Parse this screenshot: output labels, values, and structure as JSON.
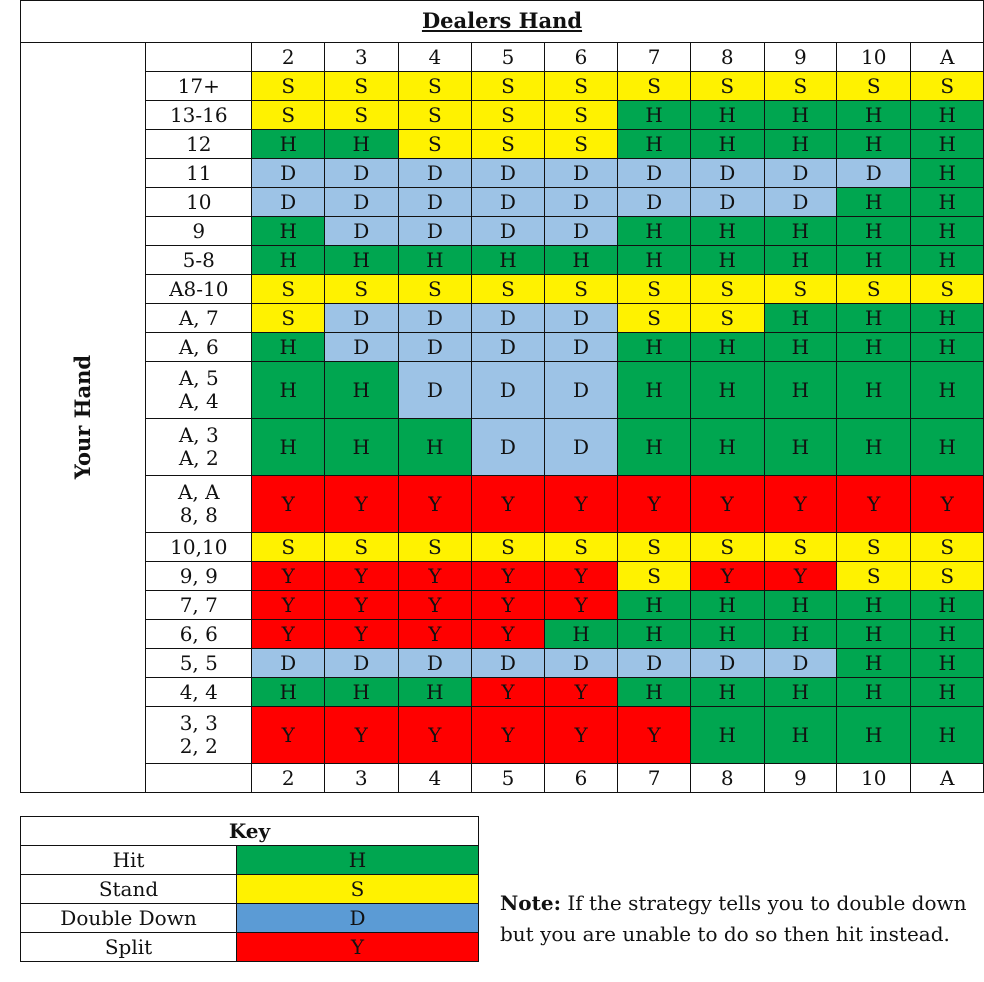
{
  "title": "Dealers Hand",
  "side_label": "Your Hand",
  "dealer_cards": [
    "2",
    "3",
    "4",
    "5",
    "6",
    "7",
    "8",
    "9",
    "10",
    "A"
  ],
  "rows": [
    {
      "labels": [
        "17+"
      ],
      "tall": false,
      "cells": [
        "S",
        "S",
        "S",
        "S",
        "S",
        "S",
        "S",
        "S",
        "S",
        "S"
      ]
    },
    {
      "labels": [
        "13-16"
      ],
      "tall": false,
      "cells": [
        "S",
        "S",
        "S",
        "S",
        "S",
        "H",
        "H",
        "H",
        "H",
        "H"
      ]
    },
    {
      "labels": [
        "12"
      ],
      "tall": false,
      "cells": [
        "H",
        "H",
        "S",
        "S",
        "S",
        "H",
        "H",
        "H",
        "H",
        "H"
      ]
    },
    {
      "labels": [
        "11"
      ],
      "tall": false,
      "cells": [
        "D",
        "D",
        "D",
        "D",
        "D",
        "D",
        "D",
        "D",
        "D",
        "H"
      ]
    },
    {
      "labels": [
        "10"
      ],
      "tall": false,
      "cells": [
        "D",
        "D",
        "D",
        "D",
        "D",
        "D",
        "D",
        "D",
        "H",
        "H"
      ]
    },
    {
      "labels": [
        "9"
      ],
      "tall": false,
      "cells": [
        "H",
        "D",
        "D",
        "D",
        "D",
        "H",
        "H",
        "H",
        "H",
        "H"
      ]
    },
    {
      "labels": [
        "5-8"
      ],
      "tall": false,
      "cells": [
        "H",
        "H",
        "H",
        "H",
        "H",
        "H",
        "H",
        "H",
        "H",
        "H"
      ]
    },
    {
      "labels": [
        "A8-10"
      ],
      "tall": false,
      "cells": [
        "S",
        "S",
        "S",
        "S",
        "S",
        "S",
        "S",
        "S",
        "S",
        "S"
      ]
    },
    {
      "labels": [
        "A, 7"
      ],
      "tall": false,
      "cells": [
        "S",
        "D",
        "D",
        "D",
        "D",
        "S",
        "S",
        "H",
        "H",
        "H"
      ]
    },
    {
      "labels": [
        "A, 6"
      ],
      "tall": false,
      "cells": [
        "H",
        "D",
        "D",
        "D",
        "D",
        "H",
        "H",
        "H",
        "H",
        "H"
      ]
    },
    {
      "labels": [
        "A, 5",
        "A, 4"
      ],
      "tall": true,
      "cells": [
        "H",
        "H",
        "D",
        "D",
        "D",
        "H",
        "H",
        "H",
        "H",
        "H"
      ]
    },
    {
      "labels": [
        "A, 3",
        "A, 2"
      ],
      "tall": true,
      "cells": [
        "H",
        "H",
        "H",
        "D",
        "D",
        "H",
        "H",
        "H",
        "H",
        "H"
      ]
    },
    {
      "labels": [
        "A, A",
        "8, 8"
      ],
      "tall": true,
      "cells": [
        "Y",
        "Y",
        "Y",
        "Y",
        "Y",
        "Y",
        "Y",
        "Y",
        "Y",
        "Y"
      ]
    },
    {
      "labels": [
        "10,10"
      ],
      "tall": false,
      "cells": [
        "S",
        "S",
        "S",
        "S",
        "S",
        "S",
        "S",
        "S",
        "S",
        "S"
      ]
    },
    {
      "labels": [
        "9, 9"
      ],
      "tall": false,
      "cells": [
        "Y",
        "Y",
        "Y",
        "Y",
        "Y",
        "S",
        "Y",
        "Y",
        "S",
        "S"
      ]
    },
    {
      "labels": [
        "7, 7"
      ],
      "tall": false,
      "cells": [
        "Y",
        "Y",
        "Y",
        "Y",
        "Y",
        "H",
        "H",
        "H",
        "H",
        "H"
      ]
    },
    {
      "labels": [
        "6, 6"
      ],
      "tall": false,
      "cells": [
        "Y",
        "Y",
        "Y",
        "Y",
        "H",
        "H",
        "H",
        "H",
        "H",
        "H"
      ]
    },
    {
      "labels": [
        "5, 5"
      ],
      "tall": false,
      "cells": [
        "D",
        "D",
        "D",
        "D",
        "D",
        "D",
        "D",
        "D",
        "H",
        "H"
      ]
    },
    {
      "labels": [
        "4, 4"
      ],
      "tall": false,
      "cells": [
        "H",
        "H",
        "H",
        "Y",
        "Y",
        "H",
        "H",
        "H",
        "H",
        "H"
      ]
    },
    {
      "labels": [
        "3, 3",
        "2, 2"
      ],
      "tall": true,
      "cells": [
        "Y",
        "Y",
        "Y",
        "Y",
        "Y",
        "Y",
        "H",
        "H",
        "H",
        "H"
      ]
    }
  ],
  "key": {
    "title": "Key",
    "items": [
      {
        "label": "Hit",
        "code": "H",
        "color": "#00a650"
      },
      {
        "label": "Stand",
        "code": "S",
        "color": "#fff200"
      },
      {
        "label": "Double Down",
        "code": "D",
        "color": "#5b9bd5"
      },
      {
        "label": "Split",
        "code": "Y",
        "color": "#ff0000"
      }
    ]
  },
  "note": {
    "label": "Note:",
    "text": "If the strategy tells you to double down but you are unable to do so then hit instead."
  }
}
